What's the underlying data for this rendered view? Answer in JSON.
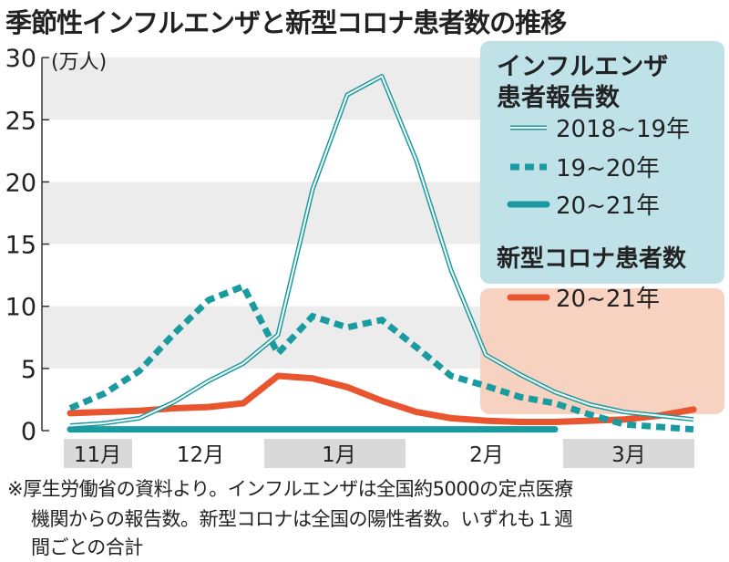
{
  "title": "季節性インフルエンザと新型コロナ患者数の推移",
  "chart_data": {
    "type": "line",
    "title": "季節性インフルエンザと新型コロナ患者数の推移",
    "ylabel": "(万人)",
    "ylim": [
      0,
      30
    ],
    "yticks": [
      "0",
      "5",
      "10",
      "15",
      "20",
      "25",
      "30"
    ],
    "grid": "alternating horizontal bands",
    "x_month_labels": [
      "11月",
      "12月",
      "1月",
      "2月",
      "3月"
    ],
    "x_weeks": 19,
    "legend_groups": [
      {
        "heading_line1": "インフルエンザ",
        "heading_line2": "患者報告数",
        "color": "#bfe2e8"
      },
      {
        "heading_line1": "新型コロナ患者数",
        "color": "#f8d2c0"
      }
    ],
    "series": [
      {
        "name": "2018~19年",
        "group": 0,
        "style": "double",
        "color": "#1a9ba0",
        "values": [
          0.4,
          0.6,
          1.0,
          2.3,
          4.0,
          5.4,
          7.7,
          19.4,
          27.0,
          28.5,
          21.7,
          12.9,
          6.1,
          4.5,
          3.1,
          2.1,
          1.5,
          1.2,
          0.9
        ]
      },
      {
        "name": "19~20年",
        "group": 0,
        "style": "dotted",
        "color": "#1a9ba0",
        "values": [
          1.8,
          3.0,
          4.8,
          7.8,
          10.5,
          11.6,
          6.2,
          9.2,
          8.3,
          8.9,
          6.7,
          4.4,
          3.6,
          2.7,
          2.2,
          1.3,
          0.5,
          0.3,
          0.1
        ]
      },
      {
        "name": "20~21年",
        "group": 0,
        "style": "solid",
        "color": "#1a9ba0",
        "values": [
          0.1,
          0.1,
          0.1,
          0.1,
          0.1,
          0.1,
          0.1,
          0.1,
          0.1,
          0.1,
          0.1,
          0.1,
          0.1,
          0.1,
          0.1
        ]
      },
      {
        "name": "20~21年",
        "group": 1,
        "style": "solid",
        "color": "#e8552f",
        "values": [
          1.4,
          1.5,
          1.6,
          1.8,
          1.9,
          2.2,
          4.4,
          4.2,
          3.5,
          2.4,
          1.5,
          1.0,
          0.8,
          0.7,
          0.7,
          0.8,
          0.9,
          1.2,
          1.7
        ]
      }
    ]
  },
  "footnote": {
    "line1": "※厚生労働省の資料より。インフルエンザは全国約5000の定点医療",
    "line2": "機関からの報告数。新型コロナは全国の陽性者数。いずれも１週",
    "line3": "間ごとの合計"
  }
}
